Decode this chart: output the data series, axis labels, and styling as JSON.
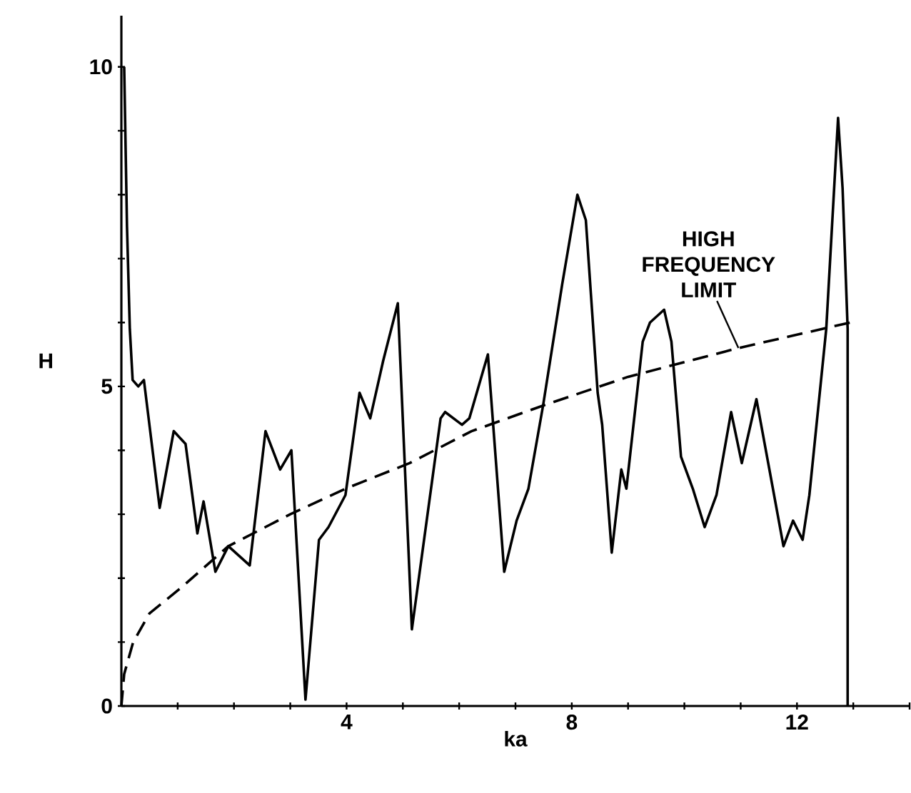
{
  "chart_data": {
    "type": "line",
    "xlabel": "ka",
    "ylabel": "H",
    "xlim": [
      0,
      14
    ],
    "ylim": [
      0,
      10.8
    ],
    "xticks": [
      {
        "value": 1,
        "label": null
      },
      {
        "value": 2,
        "label": null
      },
      {
        "value": 3,
        "label": null
      },
      4,
      {
        "value": 5,
        "label": null
      },
      {
        "value": 6,
        "label": null
      },
      {
        "value": 7,
        "label": null
      },
      8,
      {
        "value": 9,
        "label": null
      },
      {
        "value": 10,
        "label": null
      },
      {
        "value": 11,
        "label": null
      },
      12,
      {
        "value": 13,
        "label": null
      },
      {
        "value": 14,
        "label": null
      }
    ],
    "yticks": [
      0,
      {
        "value": 1,
        "label": null
      },
      {
        "value": 2,
        "label": null
      },
      {
        "value": 3,
        "label": null
      },
      {
        "value": 4,
        "label": null
      },
      5,
      {
        "value": 6,
        "label": null
      },
      {
        "value": 7,
        "label": null
      },
      {
        "value": 8,
        "label": null
      },
      {
        "value": 9,
        "label": null
      },
      10
    ],
    "series": [
      {
        "color": "#000000",
        "line_style": "solid",
        "x": [
          0.05,
          0.1,
          0.15,
          0.2,
          0.3,
          0.4,
          0.68,
          0.93,
          1.14,
          1.35,
          1.46,
          1.67,
          1.9,
          2.28,
          2.56,
          2.82,
          3.02,
          3.27,
          3.51,
          3.68,
          3.98,
          4.23,
          4.42,
          4.65,
          4.91,
          5.16,
          5.67,
          5.75,
          6.05,
          6.18,
          6.51,
          6.8,
          7.02,
          7.23,
          7.49,
          7.83,
          8.1,
          8.25,
          8.46,
          8.54,
          8.71,
          8.88,
          8.97,
          9.26,
          9.39,
          9.64,
          9.77,
          9.94,
          10.15,
          10.36,
          10.57,
          10.83,
          11.02,
          11.28,
          11.51,
          11.76,
          11.93,
          12.1,
          12.22,
          12.52,
          12.73,
          12.81,
          12.9,
          12.9
        ],
        "values": [
          10.0,
          7.5,
          5.9,
          5.1,
          5.0,
          5.1,
          3.1,
          4.3,
          4.1,
          2.7,
          3.2,
          2.1,
          2.5,
          2.2,
          4.3,
          3.7,
          4.0,
          0.1,
          2.6,
          2.8,
          3.3,
          4.9,
          4.5,
          5.4,
          6.3,
          1.2,
          4.5,
          4.6,
          4.4,
          4.5,
          5.5,
          2.1,
          2.9,
          3.4,
          4.7,
          6.6,
          8.0,
          7.6,
          4.9,
          4.4,
          2.4,
          3.7,
          3.4,
          5.7,
          6.0,
          6.2,
          5.7,
          3.9,
          3.4,
          2.8,
          3.3,
          4.6,
          3.8,
          4.8,
          3.7,
          2.5,
          2.9,
          2.6,
          3.3,
          5.9,
          9.2,
          8.1,
          5.9,
          0
        ]
      },
      {
        "color": "#000000",
        "line_style": "dashed",
        "x": [
          0,
          0.05,
          0.21,
          0.5,
          1.06,
          1.9,
          3.0,
          3.98,
          5.12,
          6.22,
          7.49,
          9.0,
          10.96,
          12.95
        ],
        "values": [
          0,
          0.5,
          1.0,
          1.45,
          1.85,
          2.5,
          3.0,
          3.4,
          3.8,
          4.3,
          4.7,
          5.15,
          5.6,
          6.0
        ]
      }
    ],
    "annotations": [
      {
        "text": "HIGH FREQUENCY LIMIT",
        "x": 10.96,
        "y": 5.6
      }
    ]
  }
}
